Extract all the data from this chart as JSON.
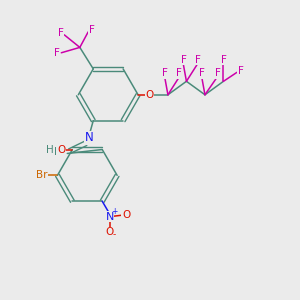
{
  "bg_color": "#ebebeb",
  "teal_color": "#4a8a7a",
  "blue_color": "#1a1aee",
  "red_color": "#dd1100",
  "magenta_color": "#cc00aa",
  "orange_color": "#cc6600",
  "figsize": [
    3.0,
    3.0
  ],
  "dpi": 100,
  "xlim": [
    0,
    10
  ],
  "ylim": [
    0,
    10
  ]
}
